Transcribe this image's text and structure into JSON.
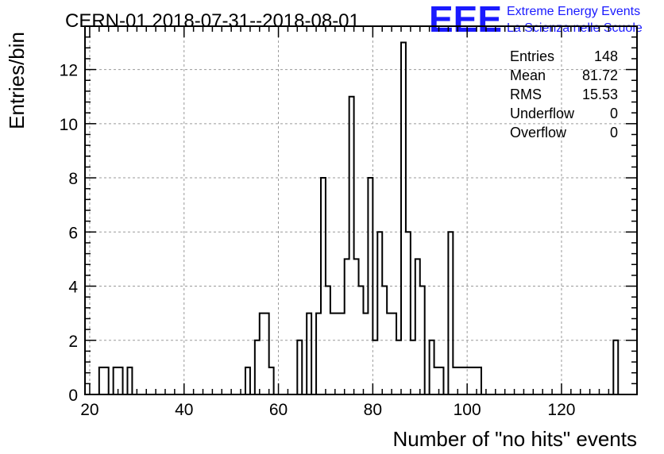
{
  "title": "CERN-01 2018-07-31--2018-08-01",
  "logo": {
    "mark": "EEE",
    "line1": "Extreme Energy Events",
    "line2": "La Scienza nelle Scuole",
    "color": "#1a1aff"
  },
  "stats": [
    {
      "label": "Entries",
      "value": "148"
    },
    {
      "label": "Mean",
      "value": "81.72"
    },
    {
      "label": "RMS",
      "value": "15.53"
    },
    {
      "label": "Underflow",
      "value": "0"
    },
    {
      "label": "Overflow",
      "value": "0"
    }
  ],
  "chart_data": {
    "type": "bar",
    "style": "step-histogram",
    "xlabel": "Number of \"no hits\" events",
    "ylabel": "Entries/bin",
    "xlim": [
      19,
      136
    ],
    "ylim": [
      0,
      13.6
    ],
    "xticks": [
      "20",
      "40",
      "60",
      "80",
      "100",
      "120"
    ],
    "yticks": [
      "0",
      "2",
      "4",
      "6",
      "8",
      "10",
      "12"
    ],
    "grid": true,
    "bin_width": 1,
    "bin_edges_start": 19,
    "values": [
      0,
      0,
      0,
      1,
      1,
      0,
      1,
      1,
      0,
      1,
      0,
      0,
      0,
      0,
      0,
      0,
      0,
      0,
      0,
      0,
      0,
      0,
      0,
      0,
      0,
      0,
      0,
      0,
      0,
      0,
      0,
      0,
      0,
      0,
      1,
      0,
      2,
      3,
      3,
      1,
      0,
      0,
      0,
      0,
      0,
      2,
      0,
      3,
      0,
      3,
      8,
      4,
      3,
      3,
      3,
      5,
      11,
      5,
      4,
      3,
      8,
      2,
      6,
      4,
      3,
      3,
      2,
      13,
      6,
      2,
      5,
      4,
      0,
      2,
      1,
      1,
      0,
      6,
      1,
      1,
      1,
      1,
      1,
      1,
      0,
      0,
      0,
      0,
      0,
      0,
      0,
      0,
      0,
      0,
      0,
      0,
      0,
      0,
      0,
      0,
      0,
      0,
      0,
      0,
      0,
      0,
      0,
      0,
      0,
      0,
      0,
      0,
      2,
      0,
      0,
      0,
      0
    ]
  }
}
